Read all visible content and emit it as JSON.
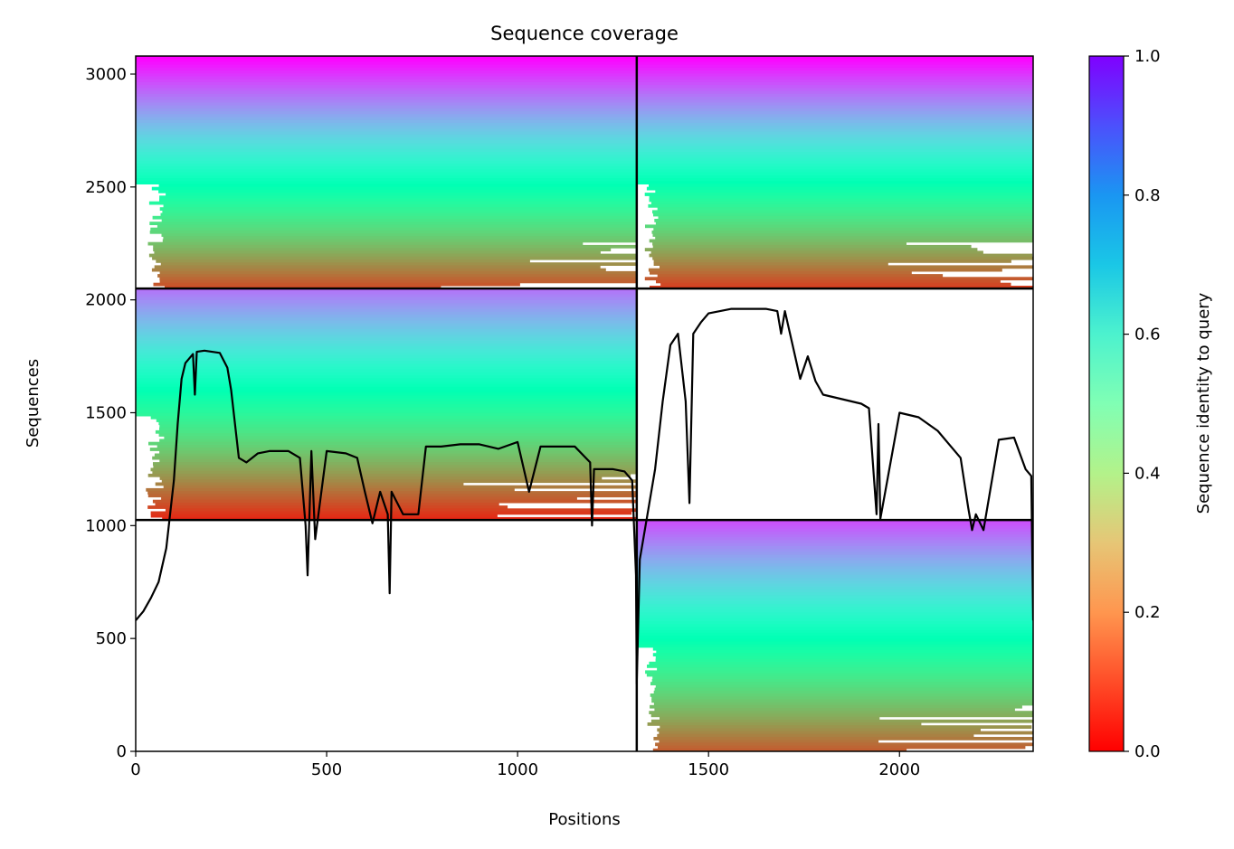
{
  "chart_data": {
    "type": "heatmap",
    "title": "Sequence coverage",
    "xlabel": "Positions",
    "ylabel": "Sequences",
    "xlim": [
      0,
      2350
    ],
    "ylim": [
      0,
      3080
    ],
    "xticks": [
      0,
      500,
      1000,
      1500,
      2000
    ],
    "yticks": [
      0,
      500,
      1000,
      1500,
      2000,
      2500,
      3000
    ],
    "colormap": "rainbow_r",
    "colorbar": {
      "label": "Sequence identity to query",
      "range": [
        0,
        1
      ],
      "ticks": [
        "0.0",
        "0.2",
        "0.4",
        "0.6",
        "0.8",
        "1.0"
      ]
    },
    "divider_lines": {
      "vertical_x": 1312,
      "horizontal_y": [
        1025,
        2050
      ],
      "color": "#000000"
    },
    "blocks": [
      {
        "name": "block-top-left",
        "x": [
          0,
          1312
        ],
        "y": [
          2050,
          3080
        ],
        "identity_top": 1.0,
        "identity_bottom": 0.1,
        "data_start_x": 0
      },
      {
        "name": "block-top-right",
        "x": [
          1312,
          2350
        ],
        "y": [
          2050,
          3080
        ],
        "identity_top": 1.0,
        "identity_bottom": 0.08,
        "data_start_x": 1312
      },
      {
        "name": "block-middle-left",
        "x": [
          0,
          1312
        ],
        "y": [
          1025,
          2050
        ],
        "identity_top": 0.85,
        "identity_bottom": 0.05,
        "data_start_x": 0
      },
      {
        "name": "block-bottom-right",
        "x": [
          1312,
          2350
        ],
        "y": [
          0,
          1025
        ],
        "identity_top": 0.9,
        "identity_bottom": 0.12,
        "data_start_x": 1312
      }
    ],
    "coverage_line": {
      "color": "#000000",
      "x": [
        0,
        20,
        40,
        60,
        80,
        100,
        110,
        120,
        130,
        150,
        155,
        160,
        180,
        200,
        220,
        240,
        250,
        270,
        290,
        320,
        350,
        400,
        430,
        445,
        450,
        460,
        470,
        500,
        550,
        580,
        600,
        620,
        640,
        660,
        665,
        670,
        700,
        740,
        760,
        800,
        850,
        900,
        950,
        1000,
        1030,
        1060,
        1100,
        1150,
        1190,
        1195,
        1200,
        1230,
        1250,
        1280,
        1300,
        1310,
        1312,
        1320,
        1340,
        1360,
        1380,
        1400,
        1420,
        1440,
        1450,
        1460,
        1480,
        1500,
        1530,
        1560,
        1600,
        1650,
        1680,
        1690,
        1700,
        1720,
        1740,
        1760,
        1780,
        1800,
        1850,
        1900,
        1920,
        1940,
        1945,
        1950,
        2000,
        2050,
        2100,
        2130,
        2160,
        2180,
        2190,
        2200,
        2220,
        2260,
        2300,
        2330,
        2345,
        2350
      ],
      "y": [
        580,
        620,
        680,
        750,
        900,
        1200,
        1450,
        1650,
        1720,
        1760,
        1580,
        1770,
        1775,
        1770,
        1765,
        1700,
        1600,
        1300,
        1280,
        1320,
        1330,
        1330,
        1300,
        1000,
        780,
        1330,
        940,
        1330,
        1320,
        1300,
        1150,
        1010,
        1150,
        1050,
        700,
        1150,
        1050,
        1050,
        1350,
        1350,
        1360,
        1360,
        1340,
        1370,
        1150,
        1350,
        1350,
        1350,
        1280,
        1000,
        1250,
        1250,
        1250,
        1240,
        1200,
        780,
        300,
        850,
        1050,
        1250,
        1550,
        1800,
        1850,
        1550,
        1100,
        1850,
        1900,
        1940,
        1950,
        1960,
        1960,
        1960,
        1950,
        1850,
        1950,
        1800,
        1650,
        1750,
        1640,
        1580,
        1560,
        1540,
        1520,
        1050,
        1450,
        1030,
        1500,
        1480,
        1420,
        1360,
        1300,
        1080,
        980,
        1050,
        980,
        1380,
        1390,
        1250,
        1220,
        580
      ]
    }
  }
}
